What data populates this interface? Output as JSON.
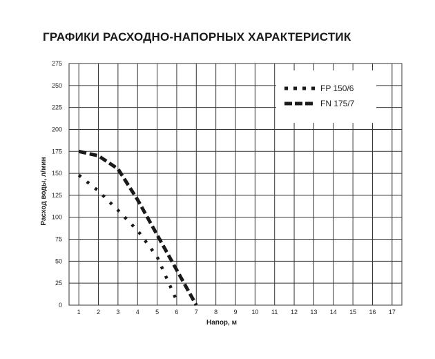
{
  "chart_data": {
    "type": "line",
    "title": "ГРАФИКИ РАСХОДНО-НАПОРНЫХ ХАРАКТЕРИСТИК",
    "xlabel": "Напор, м",
    "ylabel": "Расход воды, л/мин",
    "xlim": [
      0.5,
      17.5
    ],
    "ylim": [
      0,
      275
    ],
    "xticks": [
      1,
      2,
      3,
      4,
      5,
      6,
      7,
      8,
      9,
      10,
      11,
      12,
      13,
      14,
      15,
      16,
      17
    ],
    "yticks": [
      0,
      25,
      50,
      75,
      100,
      125,
      150,
      175,
      200,
      225,
      250,
      275
    ],
    "grid": true,
    "legend_position": "top-right",
    "series": [
      {
        "name": "FP 150/6",
        "style": "dotted",
        "color": "#1a1a1a",
        "x": [
          1,
          2,
          3,
          4,
          5,
          5.5,
          6
        ],
        "y": [
          148,
          130,
          108,
          85,
          55,
          30,
          5
        ]
      },
      {
        "name": "FN 175/7",
        "style": "dashed",
        "color": "#1a1a1a",
        "x": [
          1,
          2,
          3,
          4,
          5,
          6,
          7
        ],
        "y": [
          175,
          170,
          155,
          120,
          80,
          40,
          0
        ]
      }
    ]
  }
}
